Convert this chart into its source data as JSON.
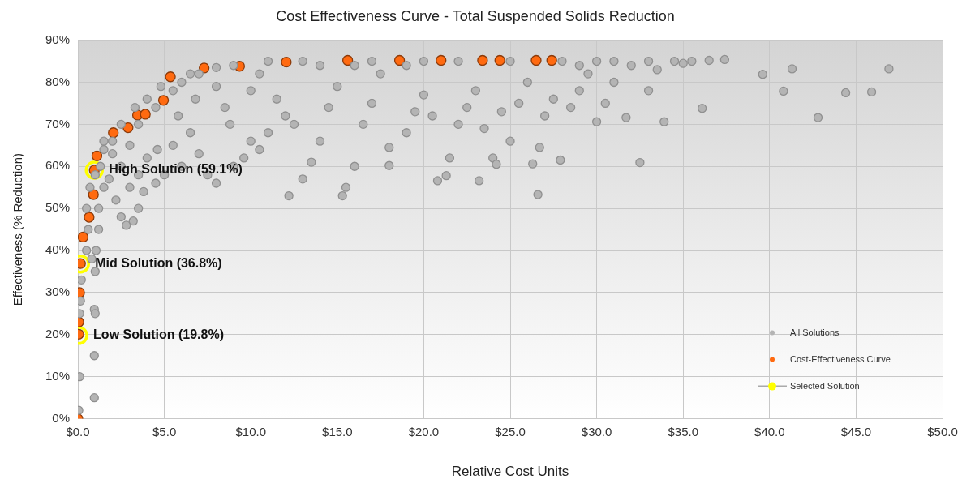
{
  "chart_data": {
    "type": "scatter",
    "title": "Cost Effectiveness Curve - Total Suspended Solids Reduction",
    "xlabel": "Relative Cost Units",
    "ylabel": "Effectiveness (% Reduction)",
    "xlim": [
      0,
      50
    ],
    "xticks": [
      {
        "value": 0,
        "label": "$0.0"
      },
      {
        "value": 5,
        "label": "$5.0"
      },
      {
        "value": 10,
        "label": "$10.0"
      },
      {
        "value": 15,
        "label": "$15.0"
      },
      {
        "value": 20,
        "label": "$20.0"
      },
      {
        "value": 25,
        "label": "$25.0"
      },
      {
        "value": 30,
        "label": "$30.0"
      },
      {
        "value": 35,
        "label": "$35.0"
      },
      {
        "value": 40,
        "label": "$40.0"
      },
      {
        "value": 45,
        "label": "$45.0"
      },
      {
        "value": 50,
        "label": "$50.0"
      }
    ],
    "ylim": [
      0,
      90
    ],
    "yticks": [
      {
        "value": 0,
        "label": "0%"
      },
      {
        "value": 10,
        "label": "10%"
      },
      {
        "value": 20,
        "label": "20%"
      },
      {
        "value": 30,
        "label": "30%"
      },
      {
        "value": 40,
        "label": "40%"
      },
      {
        "value": 50,
        "label": "50%"
      },
      {
        "value": 60,
        "label": "60%"
      },
      {
        "value": 70,
        "label": "70%"
      },
      {
        "value": 80,
        "label": "80%"
      },
      {
        "value": 90,
        "label": "90%"
      }
    ],
    "grid": true,
    "legend": "bottom right",
    "marker": "circle",
    "series": [
      {
        "name": "All Solutions",
        "color": "#b4b4b4",
        "x": [
          0.05,
          0.1,
          0.1,
          0.15,
          0.2,
          0.95,
          0.95,
          0.95,
          1.0,
          1.0,
          1.05,
          1.2,
          0.8,
          0.5,
          0.6,
          1.2,
          1.5,
          1.3,
          1.8,
          2.2,
          2.5,
          2.8,
          3.2,
          3.5,
          3.0,
          2.0,
          2.5,
          3.5,
          3.8,
          4.5,
          5.0,
          4.0,
          4.6,
          3.0,
          1.5,
          2.5,
          3.3,
          4.0,
          4.8,
          5.8,
          6.5,
          7.0,
          6.0,
          7.5,
          8.0,
          9.0,
          9.6,
          5.5,
          6.8,
          6.0,
          7.0,
          8.0,
          8.5,
          8.8,
          10.0,
          10.5,
          11.0,
          10.0,
          10.5,
          11.5,
          12.0,
          12.5,
          12.2,
          13.0,
          13.5,
          14.0,
          14.5,
          15.0,
          15.5,
          16.0,
          15.3,
          16.5,
          17.0,
          17.5,
          18.0,
          18.0,
          19.0,
          19.5,
          20.0,
          20.5,
          20.8,
          21.3,
          21.5,
          22.0,
          22.5,
          23.0,
          23.2,
          23.5,
          24.0,
          24.2,
          24.5,
          25.0,
          25.5,
          26.0,
          26.3,
          26.6,
          26.7,
          27.0,
          27.5,
          27.9,
          28.5,
          29.0,
          29.5,
          30.0,
          30.5,
          31.0,
          31.7,
          32.0,
          32.5,
          33.0,
          33.5,
          33.9,
          34.5,
          35.0,
          35.5,
          36.1,
          36.5,
          37.4,
          39.6,
          40.8,
          41.3,
          42.8,
          44.4,
          45.9,
          46.9,
          9,
          11,
          13,
          14,
          16,
          17,
          19,
          20,
          22,
          25,
          28,
          29,
          30,
          31,
          33,
          1.5,
          2,
          0.5,
          0.7,
          1.0,
          3.5,
          4.5,
          5.5,
          6.5,
          8
        ],
        "values": [
          2,
          10,
          25,
          28,
          33,
          5,
          15,
          26,
          25,
          35,
          40,
          45,
          38,
          40,
          45,
          50,
          55,
          60,
          57,
          52,
          48,
          46,
          47,
          50,
          55,
          63,
          60,
          58,
          54,
          56,
          58,
          62,
          64,
          65,
          66,
          70,
          74,
          76,
          79,
          72,
          68,
          63,
          60,
          58,
          56,
          60,
          62,
          65,
          76,
          80,
          82,
          79,
          74,
          70,
          66,
          64,
          68,
          78,
          82,
          76,
          72,
          70,
          53,
          57,
          61,
          66,
          74,
          79,
          55,
          60,
          53,
          70,
          75,
          82,
          64.5,
          60.2,
          68,
          73,
          77,
          72,
          56.6,
          57.8,
          62,
          70,
          74,
          78,
          56.6,
          69,
          62,
          60.5,
          73,
          66,
          75,
          80,
          60.6,
          53.3,
          64.5,
          72,
          76,
          61.5,
          74,
          78,
          82,
          70.6,
          75,
          80,
          71.6,
          84,
          60.9,
          78,
          83,
          70.6,
          85,
          84.5,
          85,
          73.8,
          85.2,
          85.4,
          81.9,
          77.9,
          83.2,
          71.6,
          77.5,
          77.7,
          83.2,
          84,
          85,
          85,
          84,
          84,
          85,
          84,
          85,
          85,
          85,
          85,
          84,
          85,
          85,
          85,
          64,
          66,
          50,
          55,
          58,
          70,
          74,
          78,
          82,
          83.5
        ]
      },
      {
        "name": "Cost-Effectiveness Curve",
        "color": "#ff6a10",
        "x": [
          0.0,
          0.05,
          0.05,
          0.1,
          0.15,
          0.3,
          0.65,
          0.9,
          0.95,
          1.1,
          2.05,
          2.9,
          3.45,
          3.9,
          4.95,
          5.35,
          7.3,
          9.35,
          12.05,
          15.6,
          18.6,
          21.0,
          23.4,
          24.4,
          26.5,
          27.4
        ],
        "values": [
          0,
          20.1,
          23,
          30,
          36.9,
          43.2,
          47.9,
          53.3,
          59.1,
          62.5,
          68,
          69.2,
          72.2,
          72.4,
          75.7,
          81.3,
          83.4,
          83.8,
          84.8,
          85.2,
          85.2,
          85.2,
          85.2,
          85.2,
          85.2,
          85.2
        ]
      },
      {
        "name": "Selected Solution",
        "color": "#ffff00",
        "x": [
          0.05,
          0.15,
          0.95
        ],
        "values": [
          19.8,
          36.8,
          59.1
        ]
      }
    ],
    "annotations": [
      {
        "text": "High Solution (59.1%)",
        "x": 0.95,
        "y": 59.1
      },
      {
        "text": "Mid Solution (36.8%)",
        "x": 0.15,
        "y": 36.8
      },
      {
        "text": "Low Solution (19.8%)",
        "x": 0.05,
        "y": 19.8
      }
    ]
  }
}
